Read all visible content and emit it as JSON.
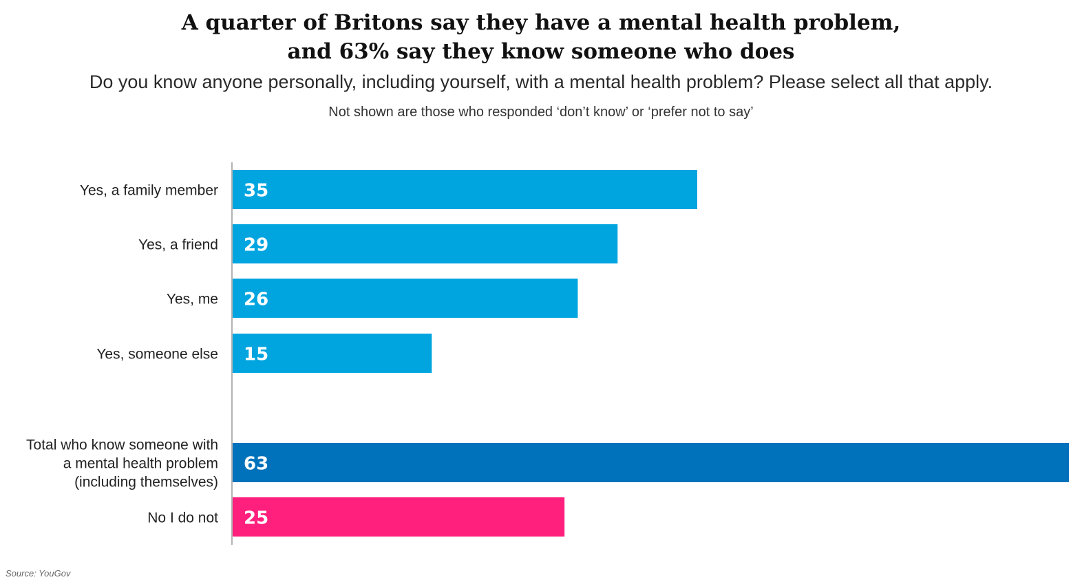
{
  "chart_data": {
    "type": "bar",
    "orientation": "horizontal",
    "title_line1": "A quarter of Britons say they have a mental health problem,",
    "title_line2": "and 63% say they know someone who does",
    "subtitle": "Do you know anyone personally, including yourself, with a mental health problem? Please select all that apply.",
    "note": "Not shown are those who responded ‘don’t know’ or ‘prefer not to say’",
    "categories": [
      [
        "Yes, a family member"
      ],
      [
        "Yes, a friend"
      ],
      [
        "Yes, me"
      ],
      [
        "Yes, someone else"
      ],
      [
        "Total who know someone with",
        "a mental health problem",
        "(including themselves)"
      ],
      [
        "No I do not"
      ]
    ],
    "values": [
      35,
      29,
      26,
      15,
      63,
      25
    ],
    "bar_colors": [
      "#00a5e0",
      "#00a5e0",
      "#00a5e0",
      "#00a5e0",
      "#0072bc",
      "#ff1f7c"
    ],
    "label_color": "#ffffff",
    "axis_color": "#999999",
    "xlim": [
      0,
      63
    ],
    "grid": false,
    "legend": "none",
    "source": "Source: YouGov"
  }
}
